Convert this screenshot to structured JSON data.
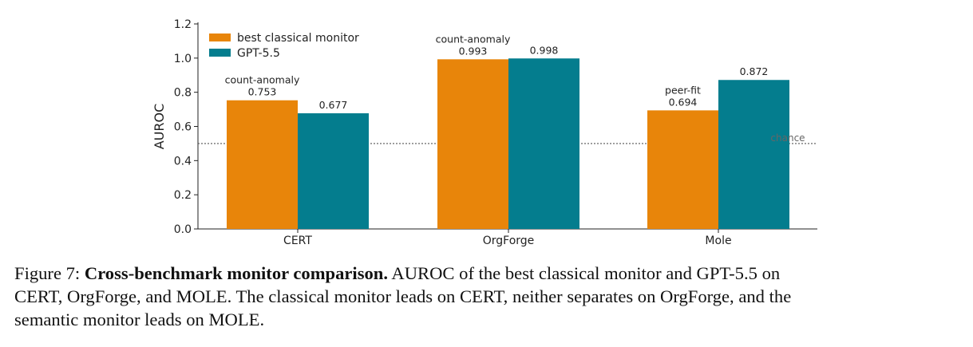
{
  "chart_data": {
    "type": "bar",
    "categories": [
      "CERT",
      "OrgForge",
      "Mole"
    ],
    "series": [
      {
        "name": "best classical monitor",
        "color": "#E8850A",
        "values": [
          0.753,
          0.993,
          0.694
        ],
        "annotations": [
          "count-anomaly",
          "count-anomaly",
          "peer-fit"
        ]
      },
      {
        "name": "GPT-5.5",
        "color": "#047D8E",
        "values": [
          0.677,
          0.998,
          0.872
        ]
      }
    ],
    "ylabel": "AUROC",
    "xlabel": "",
    "ylim": [
      0,
      1.2
    ],
    "yticks": [
      "0.0",
      "0.2",
      "0.4",
      "0.6",
      "0.8",
      "1.0",
      "1.2"
    ],
    "reference_line": {
      "value": 0.5,
      "label": "chance"
    },
    "legend_position": "top-left",
    "grid": false
  },
  "caption": {
    "figure_number": "Figure 7:",
    "title": "Cross-benchmark monitor comparison.",
    "body_line1": "AUROC of the best classical monitor and GPT-5.5 on",
    "body_line2": "CERT, OrgForge, and MOLE. The classical monitor leads on CERT, neither separates on OrgForge, and the",
    "body_line3": "semantic monitor leads on MOLE."
  }
}
